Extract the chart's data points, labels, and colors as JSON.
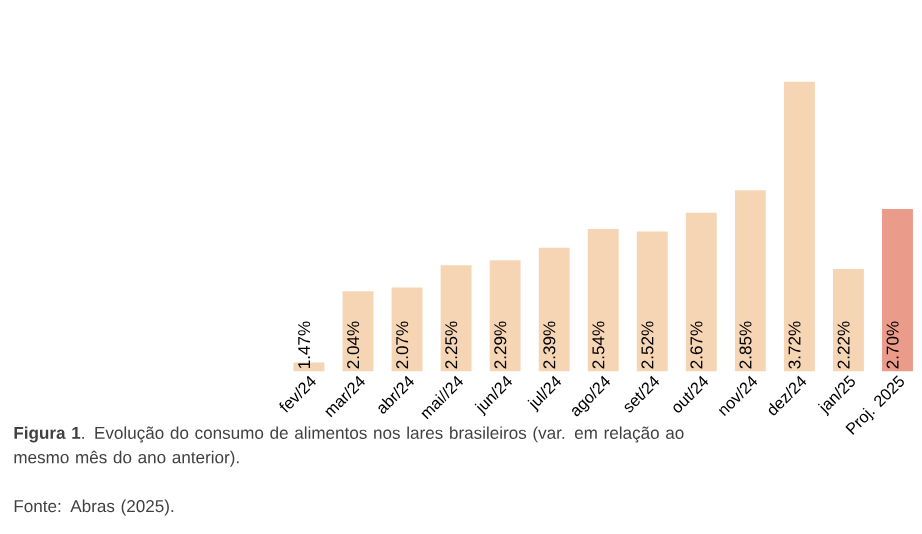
{
  "chart_data": {
    "type": "bar",
    "title": "**Figura 1**. Evolução do consumo de alimentos nos lares brasileiros (var. em relação ao mesmo mês do ano anterior).",
    "categories": [
      "fev/24",
      "mar/24",
      "abr/24",
      "mai//24",
      "jun/24",
      "jul/24",
      "ago/24",
      "set/24",
      "out/24",
      "nov/24",
      "dez/24",
      "jan/25",
      "Proj. 2025"
    ],
    "values": [
      1.47,
      2.04,
      2.07,
      2.25,
      2.29,
      2.39,
      2.54,
      2.52,
      2.67,
      2.85,
      3.72,
      2.22,
      2.7
    ],
    "value_labels": [
      "1.47%",
      "2.04%",
      "2.07%",
      "2.25%",
      "2.29%",
      "2.39%",
      "2.54%",
      "2.52%",
      "2.67%",
      "2.85%",
      "3.72%",
      "2.22%",
      "2.70%"
    ],
    "colors": [
      "#f6d5b4",
      "#f6d5b4",
      "#f6d5b4",
      "#f6d5b4",
      "#f6d5b4",
      "#f6d5b4",
      "#f6d5b4",
      "#f6d5b4",
      "#f6d5b4",
      "#f6d5b4",
      "#f6d5b4",
      "#f6d5b4",
      "#eb9b8a"
    ],
    "ylim": [
      1.4,
      3.72
    ],
    "tick_labels": "x",
    "annotations": [
      "Fonte: Abras (2025)."
    ]
  }
}
